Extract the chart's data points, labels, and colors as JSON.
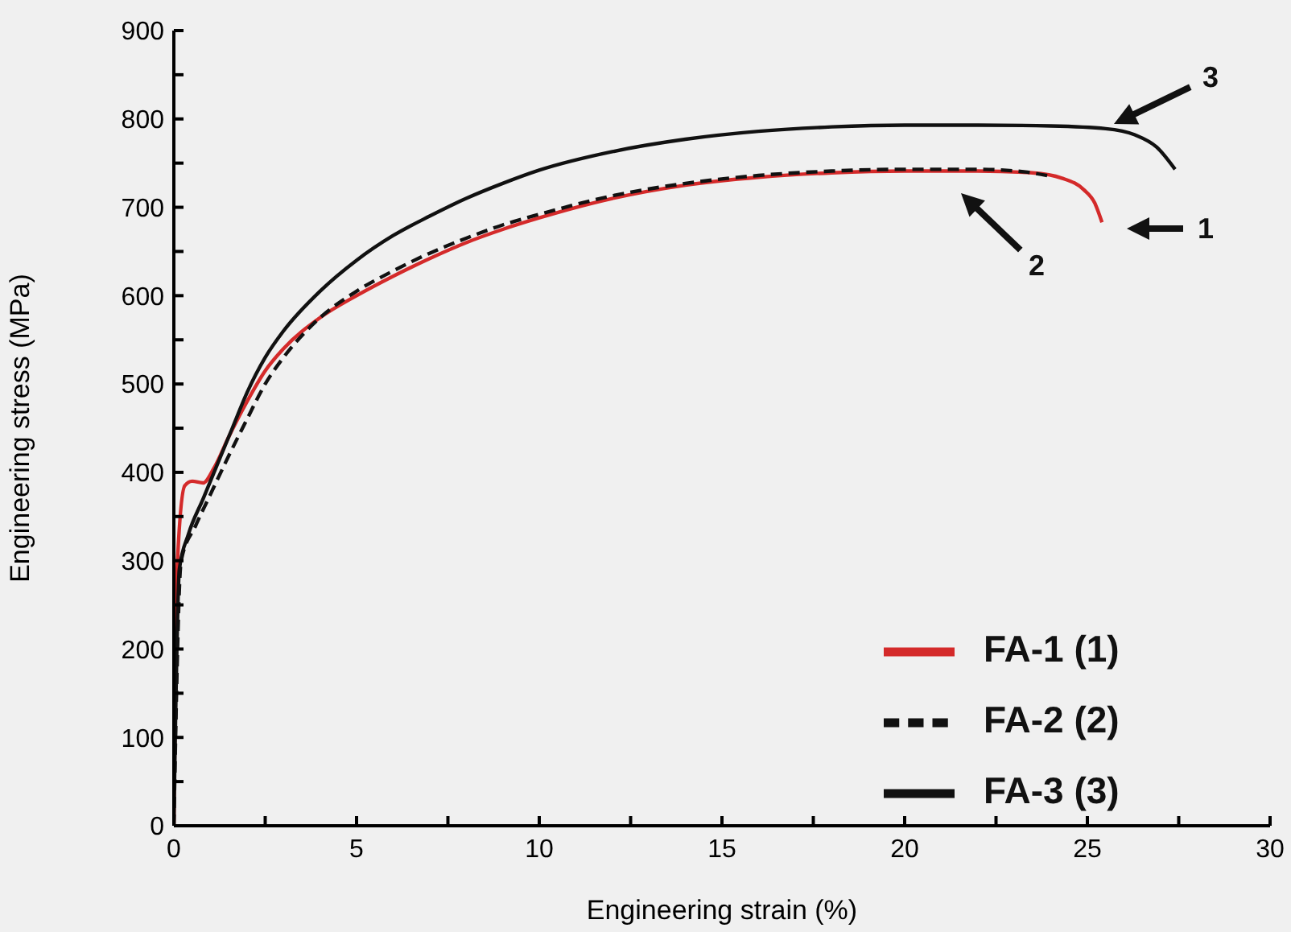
{
  "chart_data": {
    "type": "line",
    "xlabel": "Engineering strain (%)",
    "ylabel": "Engineering stress (MPa)",
    "xlim": [
      0,
      30
    ],
    "xticks": [
      0,
      {
        "value": 2.5,
        "label": null
      },
      5,
      {
        "value": 7.5,
        "label": null
      },
      10,
      {
        "value": 12.5,
        "label": null
      },
      15,
      {
        "value": 17.5,
        "label": null
      },
      20,
      {
        "value": 22.5,
        "label": null
      },
      25,
      {
        "value": 27.5,
        "label": null
      },
      30
    ],
    "ylim": [
      0,
      900
    ],
    "yticks": [
      0,
      {
        "value": 50,
        "label": null
      },
      100,
      {
        "value": 150,
        "label": null
      },
      200,
      {
        "value": 250,
        "label": null
      },
      300,
      {
        "value": 350,
        "label": null
      },
      400,
      {
        "value": 450,
        "label": null
      },
      500,
      {
        "value": 550,
        "label": null
      },
      600,
      {
        "value": 650,
        "label": null
      },
      700,
      {
        "value": 750,
        "label": null
      },
      800,
      {
        "value": 850,
        "label": null
      },
      900
    ],
    "legend": "bottom right",
    "grid": false,
    "marker": "none",
    "series": [
      {
        "name": "FA-1 (1)",
        "color": "#d42a2a",
        "line_style": "solid",
        "x": [
          0,
          0.1,
          0.3,
          0.5,
          0.8,
          1.1,
          1.5,
          2,
          2.5,
          3,
          4,
          5,
          6,
          7,
          8,
          9,
          10,
          12,
          14,
          16,
          18,
          20,
          22,
          23.5,
          24.3,
          24.9,
          25.2,
          25.4
        ],
        "values": [
          0,
          300,
          385,
          390,
          388,
          405,
          440,
          480,
          515,
          540,
          575,
          600,
          622,
          642,
          660,
          675,
          688,
          710,
          725,
          734,
          739,
          741,
          741,
          739,
          733,
          720,
          705,
          683
        ]
      },
      {
        "name": "FA-2 (2)",
        "color": "#111111",
        "line_style": "dashed",
        "x": [
          0,
          0.2,
          0.6,
          1,
          1.4,
          2,
          2.5,
          3,
          4,
          5,
          6,
          7,
          8,
          9,
          10,
          12,
          14,
          16,
          18,
          20,
          22,
          23.3,
          24
        ],
        "values": [
          0,
          300,
          340,
          375,
          410,
          460,
          500,
          530,
          575,
          605,
          628,
          648,
          665,
          680,
          692,
          713,
          727,
          736,
          741,
          743,
          743,
          740,
          735
        ]
      },
      {
        "name": "FA-3 (3)",
        "color": "#111111",
        "line_style": "solid",
        "x": [
          0,
          0.15,
          0.4,
          0.8,
          1.2,
          1.6,
          2,
          2.5,
          3,
          4,
          5,
          6,
          7,
          8,
          9,
          10,
          12,
          14,
          16,
          18,
          20,
          22,
          24,
          25.5,
          26.3,
          26.9,
          27.4
        ],
        "values": [
          0,
          290,
          330,
          370,
          410,
          450,
          490,
          530,
          560,
          605,
          640,
          668,
          690,
          710,
          727,
          742,
          763,
          777,
          786,
          791,
          793,
          793,
          792,
          789,
          782,
          768,
          743
        ]
      }
    ],
    "annotations": [
      "1",
      "2",
      "3"
    ]
  }
}
